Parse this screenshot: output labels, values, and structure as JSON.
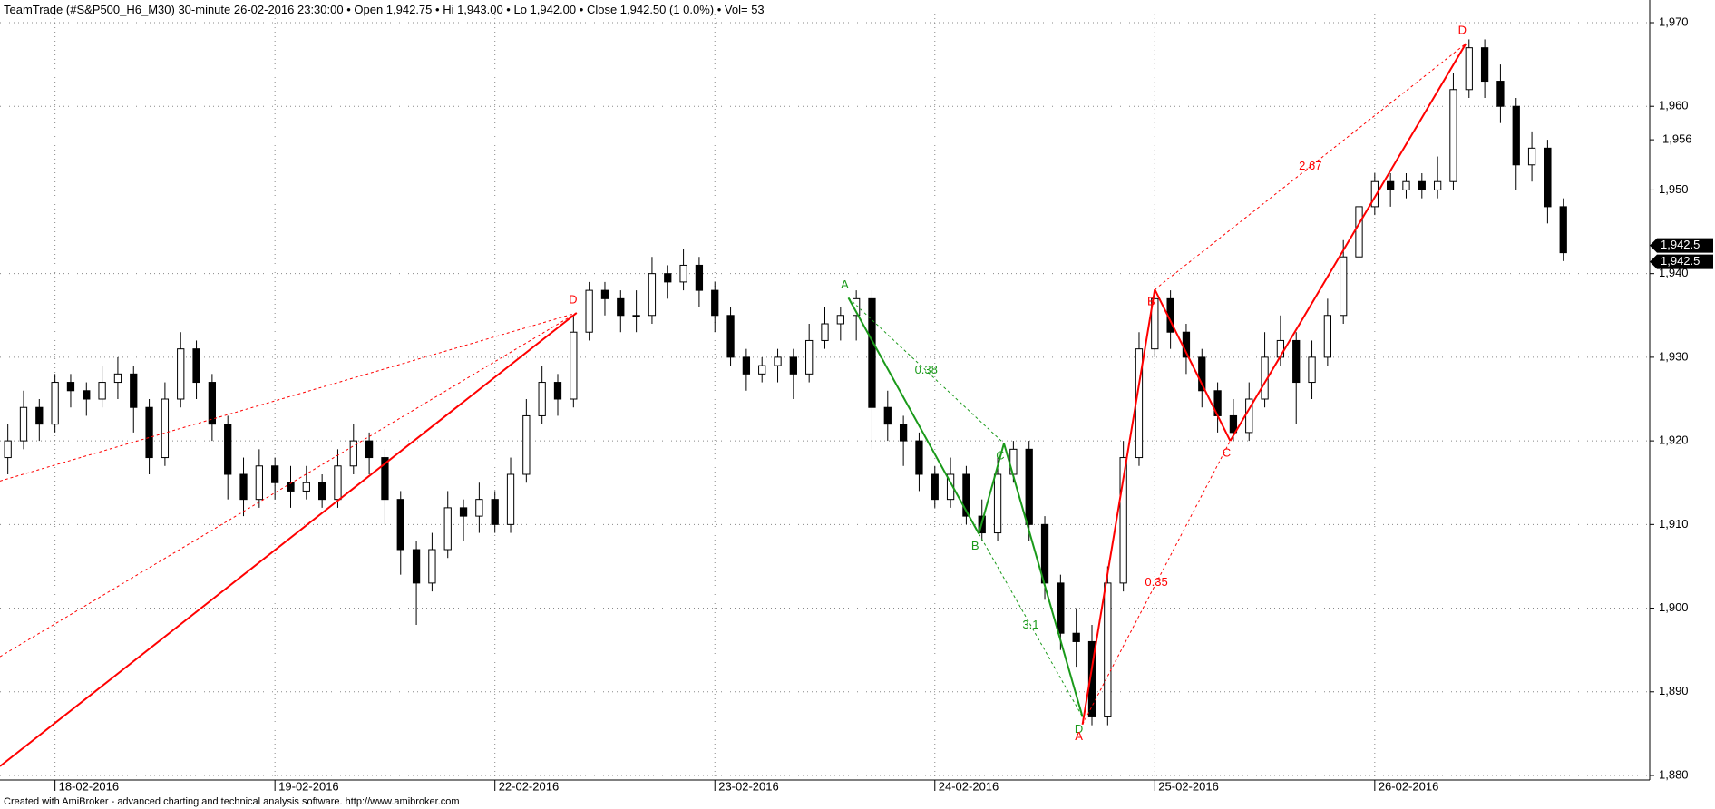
{
  "chart_data": {
    "type": "candlestick",
    "header": [
      "TeamTrade (#S&P500_H6_M30) 30-minute  26-02-2016 23:30:00",
      "Open 1,942.75",
      "Hi 1,943.00",
      "Lo 1,942.00",
      "Close 1,942.50 (1 0.0%)",
      "Vol= 53"
    ],
    "footer": "Created with AmiBroker - advanced charting and technical analysis software. http://www.amibroker.com",
    "xlim": [
      -0.5,
      104.5
    ],
    "xticks": [
      {
        "value": 3,
        "label": "18-02-2016"
      },
      {
        "value": 17,
        "label": "19-02-2016"
      },
      {
        "value": 31,
        "label": "22-02-2016"
      },
      {
        "value": 45,
        "label": "23-02-2016"
      },
      {
        "value": 59,
        "label": "24-02-2016"
      },
      {
        "value": 73,
        "label": "25-02-2016"
      },
      {
        "value": 87,
        "label": "26-02-2016"
      }
    ],
    "ylim": [
      1880,
      1970
    ],
    "yticks": [
      {
        "value": 1880,
        "label": "1,880"
      },
      {
        "value": 1890,
        "label": "1,890"
      },
      {
        "value": 1900,
        "label": "1,900"
      },
      {
        "value": 1910,
        "label": "1,910"
      },
      {
        "value": 1920,
        "label": "1,920"
      },
      {
        "value": 1930,
        "label": "1,930"
      },
      {
        "value": 1940,
        "label": "1,940"
      },
      {
        "value": 1950,
        "label": "1,950"
      },
      {
        "value": 1960,
        "label": "1,960"
      },
      {
        "value": 1970,
        "label": "1,970"
      }
    ],
    "price_markers": [
      {
        "value": 1956,
        "label": "1,956",
        "boxed": false
      },
      {
        "value": 1942.5,
        "label": "1,942.5",
        "boxed": true
      },
      {
        "value": 1942.5,
        "label": "1,942.5",
        "boxed": true
      }
    ],
    "grid": true,
    "up_color": "#ffffff",
    "down_color": "#000000",
    "ohlc": [
      [
        1918,
        1922,
        1916,
        1920
      ],
      [
        1920,
        1926,
        1919,
        1924
      ],
      [
        1924,
        1925,
        1920,
        1922
      ],
      [
        1922,
        1928,
        1921,
        1927
      ],
      [
        1927,
        1928,
        1924,
        1926
      ],
      [
        1926,
        1927,
        1923,
        1925
      ],
      [
        1925,
        1929,
        1924,
        1927
      ],
      [
        1927,
        1930,
        1925,
        1928
      ],
      [
        1928,
        1929,
        1921,
        1924
      ],
      [
        1924,
        1925,
        1916,
        1918
      ],
      [
        1918,
        1927,
        1917,
        1925
      ],
      [
        1925,
        1933,
        1924,
        1931
      ],
      [
        1931,
        1932,
        1925,
        1927
      ],
      [
        1927,
        1928,
        1920,
        1922
      ],
      [
        1922,
        1923,
        1913,
        1916
      ],
      [
        1916,
        1918,
        1911,
        1913
      ],
      [
        1913,
        1919,
        1912,
        1917
      ],
      [
        1917,
        1918,
        1913,
        1915
      ],
      [
        1915,
        1917,
        1912,
        1914
      ],
      [
        1914,
        1917,
        1913,
        1915
      ],
      [
        1915,
        1916,
        1912,
        1913
      ],
      [
        1913,
        1919,
        1912,
        1917
      ],
      [
        1917,
        1922,
        1916,
        1920
      ],
      [
        1920,
        1921,
        1916,
        1918
      ],
      [
        1918,
        1919,
        1910,
        1913
      ],
      [
        1913,
        1914,
        1904,
        1907
      ],
      [
        1907,
        1908,
        1898,
        1903
      ],
      [
        1903,
        1909,
        1902,
        1907
      ],
      [
        1907,
        1914,
        1906,
        1912
      ],
      [
        1912,
        1913,
        1908,
        1911
      ],
      [
        1911,
        1915,
        1909,
        1913
      ],
      [
        1913,
        1914,
        1909,
        1910
      ],
      [
        1910,
        1918,
        1909,
        1916
      ],
      [
        1916,
        1925,
        1915,
        1923
      ],
      [
        1923,
        1929,
        1922,
        1927
      ],
      [
        1927,
        1928,
        1923,
        1925
      ],
      [
        1925,
        1935,
        1924,
        1933
      ],
      [
        1933,
        1939,
        1932,
        1938
      ],
      [
        1938,
        1939,
        1935,
        1937
      ],
      [
        1937,
        1938,
        1933,
        1935
      ],
      [
        1935,
        1938,
        1933,
        1935
      ],
      [
        1935,
        1942,
        1934,
        1940
      ],
      [
        1940,
        1941,
        1937,
        1939
      ],
      [
        1939,
        1943,
        1938,
        1941
      ],
      [
        1941,
        1942,
        1936,
        1938
      ],
      [
        1938,
        1939,
        1933,
        1935
      ],
      [
        1935,
        1936,
        1929,
        1930
      ],
      [
        1930,
        1931,
        1926,
        1928
      ],
      [
        1928,
        1930,
        1927,
        1929
      ],
      [
        1929,
        1931,
        1927,
        1930
      ],
      [
        1930,
        1931,
        1925,
        1928
      ],
      [
        1928,
        1934,
        1927,
        1932
      ],
      [
        1932,
        1936,
        1931,
        1934
      ],
      [
        1934,
        1936,
        1932,
        1935
      ],
      [
        1935,
        1938,
        1932,
        1937
      ],
      [
        1937,
        1938,
        1919,
        1924
      ],
      [
        1924,
        1926,
        1920,
        1922
      ],
      [
        1922,
        1923,
        1917,
        1920
      ],
      [
        1920,
        1921,
        1914,
        1916
      ],
      [
        1916,
        1917,
        1912,
        1913
      ],
      [
        1913,
        1918,
        1912,
        1916
      ],
      [
        1916,
        1917,
        1910,
        1911
      ],
      [
        1911,
        1913,
        1908,
        1909
      ],
      [
        1909,
        1918,
        1908,
        1916
      ],
      [
        1916,
        1920,
        1915,
        1919
      ],
      [
        1919,
        1920,
        1908,
        1910
      ],
      [
        1910,
        1911,
        1901,
        1903
      ],
      [
        1903,
        1904,
        1895,
        1897
      ],
      [
        1897,
        1900,
        1893,
        1896
      ],
      [
        1896,
        1898,
        1886,
        1887
      ],
      [
        1887,
        1905,
        1886,
        1903
      ],
      [
        1903,
        1920,
        1902,
        1918
      ],
      [
        1918,
        1933,
        1917,
        1931
      ],
      [
        1931,
        1938,
        1930,
        1937
      ],
      [
        1937,
        1938,
        1931,
        1933
      ],
      [
        1933,
        1934,
        1928,
        1930
      ],
      [
        1930,
        1931,
        1924,
        1926
      ],
      [
        1926,
        1927,
        1921,
        1923
      ],
      [
        1923,
        1925,
        1920,
        1921
      ],
      [
        1921,
        1927,
        1920,
        1925
      ],
      [
        1925,
        1933,
        1924,
        1930
      ],
      [
        1930,
        1935,
        1929,
        1932
      ],
      [
        1932,
        1933,
        1922,
        1927
      ],
      [
        1927,
        1932,
        1925,
        1930
      ],
      [
        1930,
        1937,
        1929,
        1935
      ],
      [
        1935,
        1944,
        1934,
        1942
      ],
      [
        1942,
        1950,
        1941,
        1948
      ],
      [
        1948,
        1952,
        1947,
        1951
      ],
      [
        1951,
        1952,
        1948,
        1950
      ],
      [
        1950,
        1952,
        1949,
        1951
      ],
      [
        1951,
        1952,
        1949,
        1950
      ],
      [
        1950,
        1954,
        1949,
        1951
      ],
      [
        1951,
        1964,
        1950,
        1962
      ],
      [
        1962,
        1968,
        1961,
        1967
      ],
      [
        1967,
        1968,
        1961,
        1963
      ],
      [
        1963,
        1965,
        1958,
        1960
      ],
      [
        1960,
        1961,
        1950,
        1953
      ],
      [
        1953,
        1957,
        1951,
        1955
      ],
      [
        1955,
        1956,
        1946,
        1948
      ],
      [
        1948,
        1949,
        1941.5,
        1942.5
      ]
    ],
    "patterns": [
      {
        "color": "#ff0000",
        "points": [
          {
            "x": -0.5,
            "y": 1881.1
          },
          {
            "x": -0.5,
            "y": 1915.2
          },
          {
            "x": -0.5,
            "y": 1894.2
          },
          {
            "x": 36.2,
            "y": 1935.3,
            "label": "D"
          }
        ],
        "segments": [
          {
            "from": 0,
            "to": 3,
            "style": "solid"
          },
          {
            "from": 1,
            "to": 3,
            "style": "dashed"
          },
          {
            "from": 2,
            "to": 3,
            "style": "dashed"
          }
        ]
      },
      {
        "color": "#1a9a1a",
        "points": [
          {
            "x": 53.5,
            "y": 1937.1,
            "label": "A"
          },
          {
            "x": 61.8,
            "y": 1908.9,
            "label": "B"
          },
          {
            "x": 63.4,
            "y": 1919.7,
            "label": "C"
          },
          {
            "x": 68.4,
            "y": 1887.0,
            "label": "D"
          }
        ],
        "segments": [
          {
            "from": 0,
            "to": 1,
            "style": "solid"
          },
          {
            "from": 1,
            "to": 2,
            "style": "solid"
          },
          {
            "from": 2,
            "to": 3,
            "style": "solid"
          },
          {
            "from": 0,
            "to": 2,
            "style": "dashed",
            "label": "0.38"
          },
          {
            "from": 1,
            "to": 3,
            "style": "dashed",
            "label": "3.1"
          }
        ]
      },
      {
        "color": "#ff0000",
        "points": [
          {
            "x": 68.4,
            "y": 1886.1,
            "label": "A"
          },
          {
            "x": 73,
            "y": 1938.1,
            "label": "B"
          },
          {
            "x": 77.8,
            "y": 1920,
            "label": "C"
          },
          {
            "x": 92.8,
            "y": 1967.5,
            "label": "D"
          }
        ],
        "segments": [
          {
            "from": 0,
            "to": 1,
            "style": "solid"
          },
          {
            "from": 1,
            "to": 2,
            "style": "solid"
          },
          {
            "from": 2,
            "to": 3,
            "style": "solid"
          },
          {
            "from": 0,
            "to": 2,
            "style": "dashed",
            "label": "0.35"
          },
          {
            "from": 1,
            "to": 3,
            "style": "dashed",
            "label": "2.67"
          }
        ]
      }
    ]
  }
}
